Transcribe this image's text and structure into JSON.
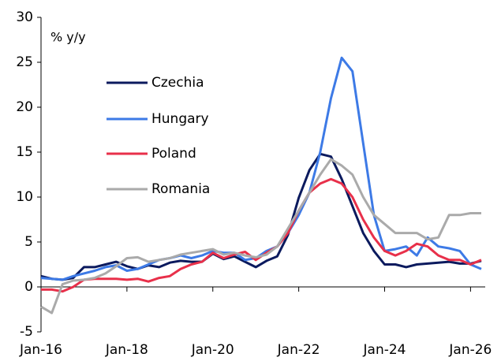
{
  "chart_data": {
    "type": "line",
    "y_label": "% y/y",
    "categories": [
      "Jan-16",
      null,
      null,
      null,
      null,
      null,
      null,
      null,
      "Jan-18",
      null,
      null,
      null,
      null,
      null,
      null,
      null,
      "Jan-20",
      null,
      null,
      null,
      null,
      null,
      null,
      null,
      "Jan-22",
      null,
      null,
      null,
      null,
      null,
      null,
      null,
      "Jan-24",
      null,
      null,
      null,
      null,
      null,
      null,
      null,
      "Jan-26",
      null
    ],
    "series": [
      {
        "name": "Czechia",
        "color": "#0b1a5e",
        "values": [
          1.2,
          0.9,
          0.8,
          1.0,
          2.2,
          2.2,
          2.5,
          2.8,
          2.3,
          2.0,
          2.4,
          2.2,
          2.7,
          2.9,
          2.8,
          2.8,
          3.7,
          3.1,
          3.4,
          2.8,
          2.2,
          2.9,
          3.4,
          5.8,
          9.9,
          13.0,
          14.8,
          14.5,
          12.0,
          9.0,
          6.0,
          4.0,
          2.5,
          2.5,
          2.2,
          2.5,
          2.6,
          2.7,
          2.8,
          2.6,
          2.6,
          2.9
        ]
      },
      {
        "name": "Hungary",
        "color": "#3d7ae6",
        "values": [
          1.0,
          0.9,
          0.8,
          1.2,
          1.5,
          1.8,
          2.2,
          2.4,
          1.8,
          2.0,
          2.5,
          3.0,
          3.2,
          3.5,
          3.2,
          3.5,
          4.0,
          3.8,
          3.8,
          3.0,
          3.2,
          4.0,
          4.5,
          6.0,
          8.0,
          10.5,
          15.0,
          21.0,
          25.5,
          24.0,
          16.0,
          8.0,
          4.0,
          4.2,
          4.5,
          3.5,
          5.5,
          4.5,
          4.3,
          4.0,
          2.5,
          2.0
        ]
      },
      {
        "name": "Poland",
        "color": "#e8304a",
        "values": [
          -0.3,
          -0.3,
          -0.5,
          0.0,
          0.8,
          0.9,
          0.9,
          0.9,
          0.8,
          0.9,
          0.6,
          1.0,
          1.2,
          2.0,
          2.5,
          2.8,
          3.8,
          3.2,
          3.6,
          3.9,
          3.0,
          3.8,
          4.5,
          6.0,
          8.5,
          10.5,
          11.5,
          12.0,
          11.5,
          10.0,
          7.5,
          5.5,
          4.0,
          3.5,
          4.0,
          4.8,
          4.5,
          3.5,
          3.0,
          3.0,
          2.5,
          3.0
        ]
      },
      {
        "name": "Romania",
        "color": "#aaaaaa",
        "values": [
          -2.2,
          -2.9,
          0.3,
          0.7,
          0.8,
          1.0,
          1.5,
          2.3,
          3.2,
          3.3,
          2.8,
          3.0,
          3.2,
          3.6,
          3.8,
          4.0,
          4.2,
          3.6,
          3.8,
          3.5,
          3.3,
          3.6,
          4.5,
          6.5,
          8.5,
          10.5,
          12.5,
          14.2,
          13.5,
          12.5,
          10.0,
          8.0,
          7.0,
          6.0,
          6.0,
          6.0,
          5.3,
          5.5,
          8.0,
          8.0,
          8.2,
          8.2
        ]
      }
    ],
    "ylim": [
      -5,
      30
    ],
    "yticks": [
      -5,
      0,
      5,
      10,
      15,
      20,
      25,
      30
    ]
  }
}
